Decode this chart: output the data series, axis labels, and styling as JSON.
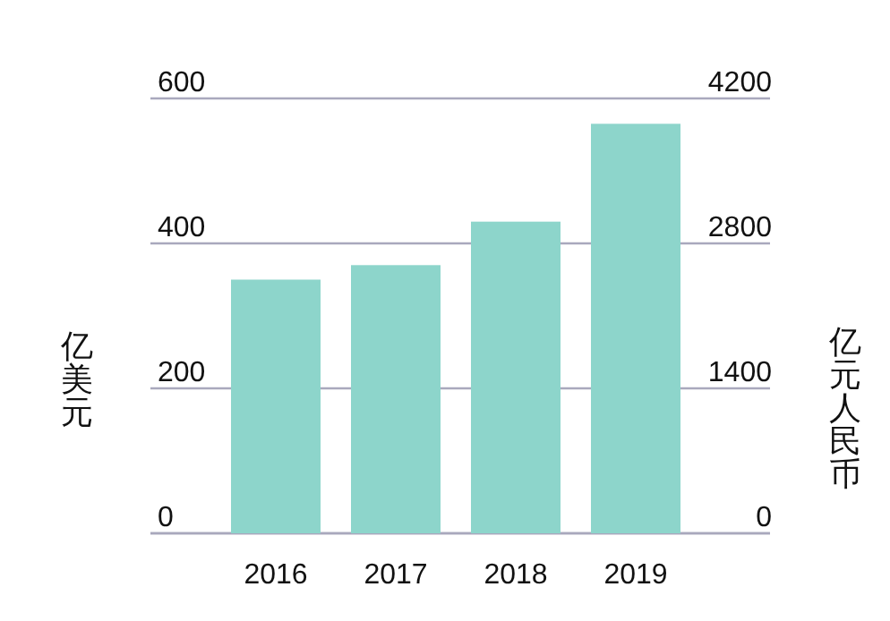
{
  "chart_data": {
    "type": "bar",
    "categories": [
      "2016",
      "2017",
      "2018",
      "2019"
    ],
    "values": [
      350,
      370,
      430,
      565
    ],
    "color": "#8dd5cb",
    "ylim": [
      0,
      600
    ],
    "yticks": [
      0,
      200,
      400,
      600
    ],
    "ylabel": "亿美元",
    "y2lim": [
      0,
      4200
    ],
    "y2ticks": [
      0,
      1400,
      2800,
      4200
    ],
    "y2label": "亿元人民币",
    "grid": "y"
  }
}
